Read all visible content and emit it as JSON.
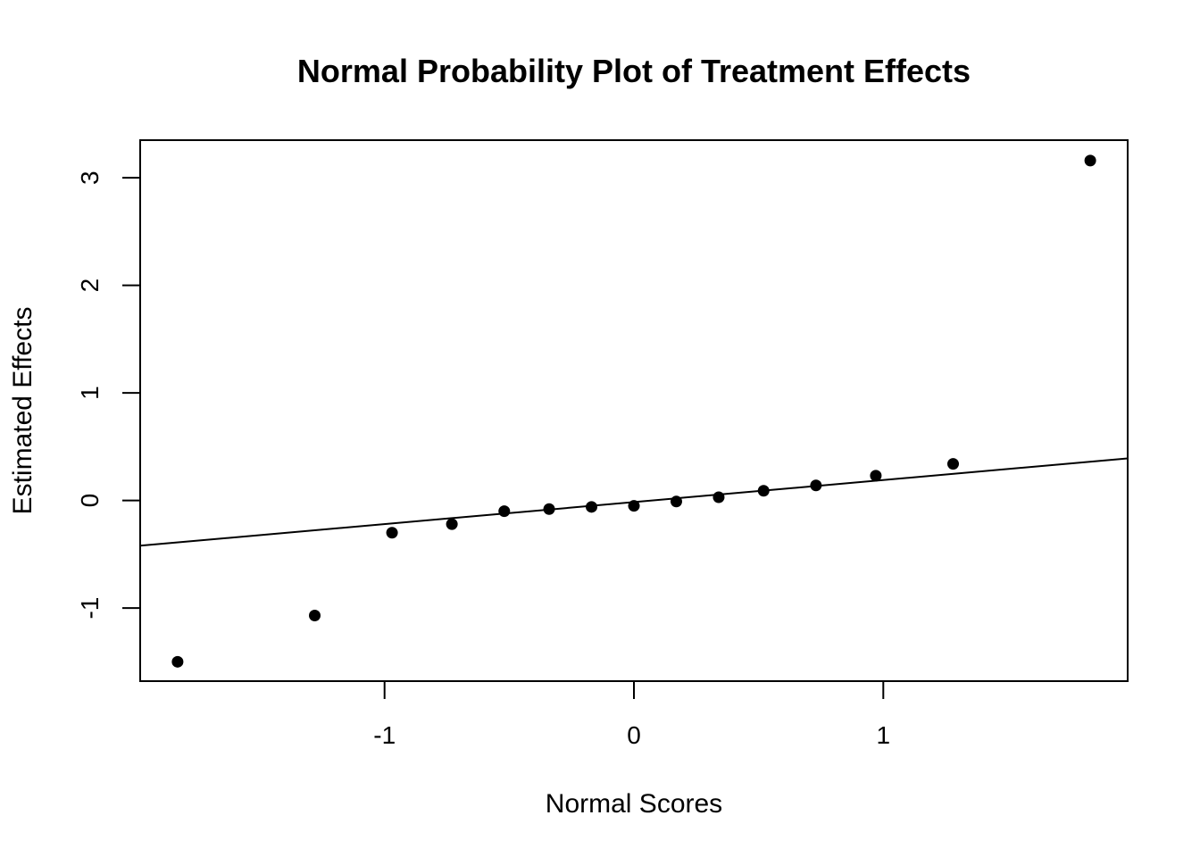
{
  "chart_data": {
    "type": "scatter",
    "title": "Normal Probability Plot of Treatment Effects",
    "xlabel": "Normal Scores",
    "ylabel": "Estimated Effects",
    "xlim": [
      -1.98,
      1.98
    ],
    "ylim": [
      -1.68,
      3.35
    ],
    "x_ticks": [
      -1,
      0,
      1
    ],
    "x_tick_labels": [
      "-1",
      "0",
      "1"
    ],
    "y_ticks": [
      -1,
      0,
      1,
      2,
      3
    ],
    "y_tick_labels": [
      "-1",
      "0",
      "1",
      "2",
      "3"
    ],
    "grid": false,
    "legend": "none",
    "points": {
      "x": [
        -1.83,
        -1.28,
        -0.97,
        -0.73,
        -0.52,
        -0.34,
        -0.17,
        0.0,
        0.17,
        0.34,
        0.52,
        0.73,
        0.97,
        1.28,
        1.83
      ],
      "y": [
        -1.5,
        -1.07,
        -0.3,
        -0.22,
        -0.1,
        -0.08,
        -0.06,
        -0.05,
        -0.01,
        0.03,
        0.09,
        0.14,
        0.23,
        0.34,
        3.16
      ]
    },
    "reference_line": {
      "intercept": -0.015,
      "slope": 0.205
    },
    "colors": {
      "points": "#000000",
      "line": "#000000",
      "background": "#ffffff"
    }
  }
}
